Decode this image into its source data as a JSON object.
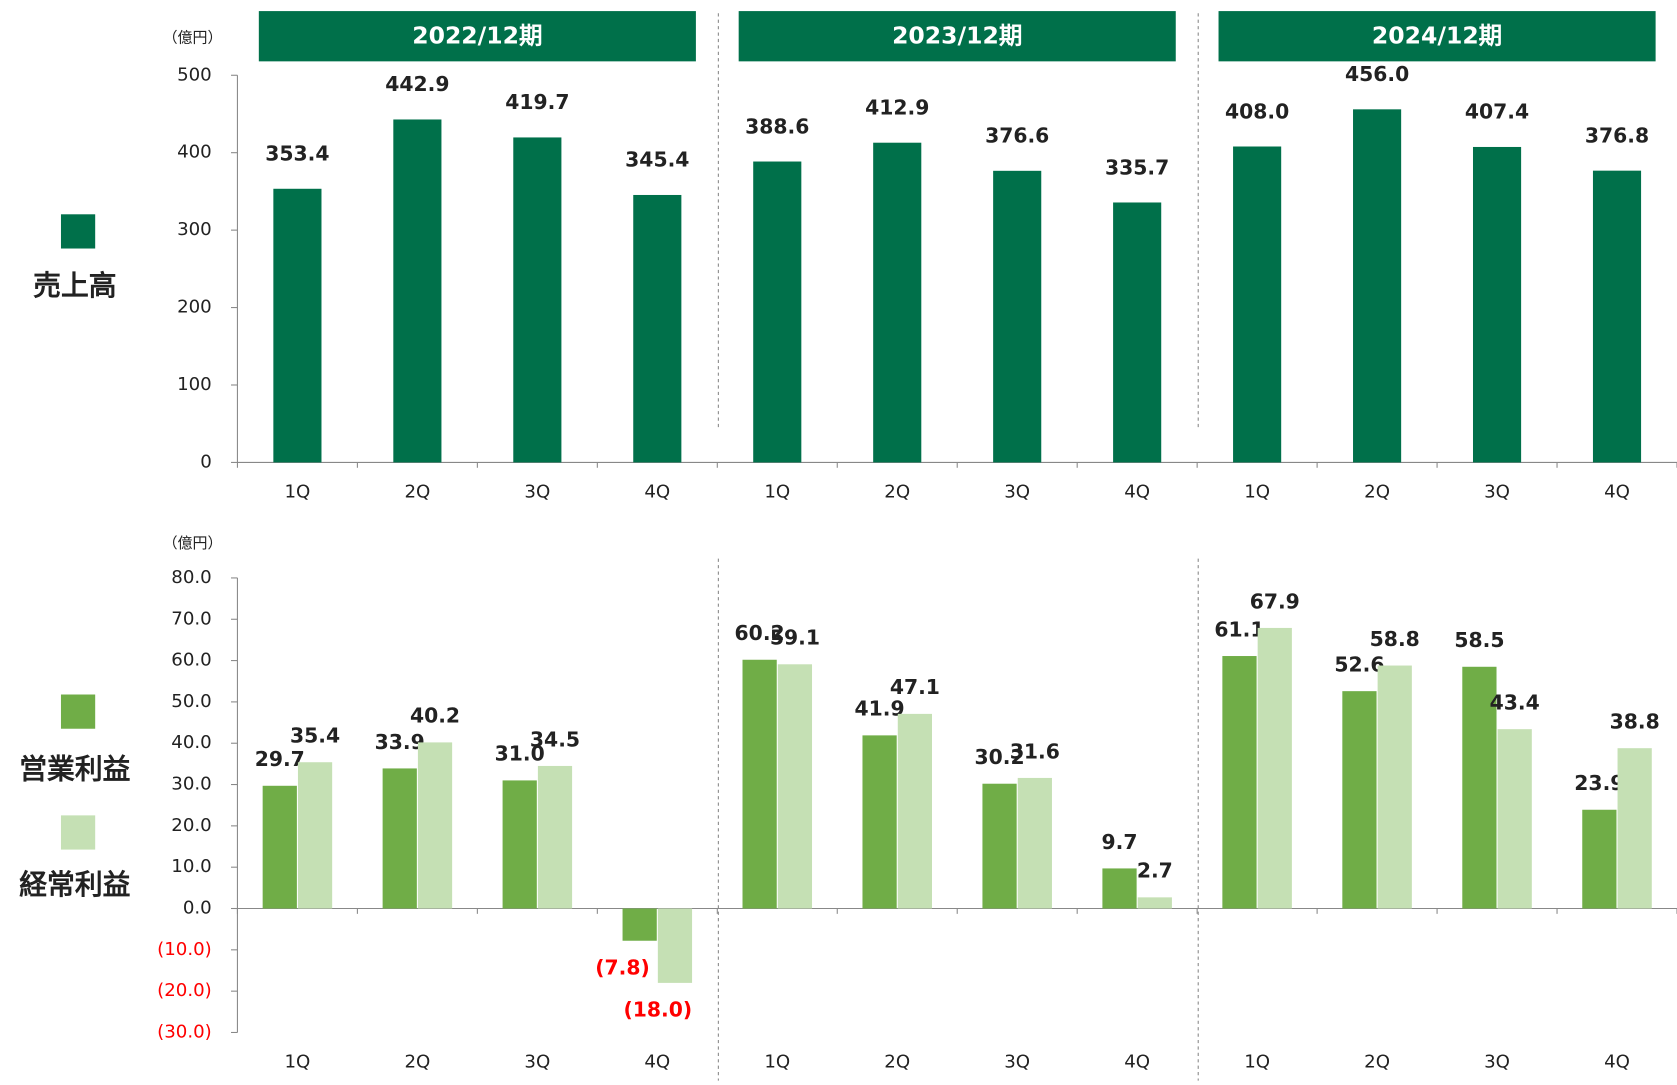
{
  "chart_data": [
    {
      "type": "bar",
      "y_label": "（億円）",
      "groups": [
        "2022/12期",
        "2023/12期",
        "2024/12期"
      ],
      "group_color": "#00704a",
      "categories": [
        "1Q",
        "2Q",
        "3Q",
        "4Q",
        "1Q",
        "2Q",
        "3Q",
        "4Q",
        "1Q",
        "2Q",
        "3Q",
        "4Q"
      ],
      "series": [
        {
          "name": "売上高",
          "color": "#00704a",
          "values": [
            353.4,
            442.9,
            419.7,
            345.4,
            388.6,
            412.9,
            376.6,
            335.7,
            408,
            456,
            407.4,
            376.8
          ],
          "value_labels": [
            "353.4",
            "442.9",
            "419.7",
            "345.4",
            "388.6",
            "412.9",
            "376.6",
            "335.7",
            "408.0",
            "456.0",
            "407.4",
            "376.8"
          ]
        }
      ],
      "ylim": [
        0,
        500
      ],
      "yticks": [
        0,
        100,
        200,
        300,
        400,
        500
      ]
    },
    {
      "type": "bar",
      "y_label": "（億円）",
      "negative_color": "#ff0000",
      "categories": [
        "1Q",
        "2Q",
        "3Q",
        "4Q",
        "1Q",
        "2Q",
        "3Q",
        "4Q",
        "1Q",
        "2Q",
        "3Q",
        "4Q"
      ],
      "series": [
        {
          "name": "営業利益",
          "color": "#70ad47",
          "values": [
            29.7,
            33.9,
            31,
            -7.8,
            60.2,
            41.9,
            30.2,
            9.7,
            61.1,
            52.6,
            58.5,
            23.9
          ],
          "value_labels": [
            "29.7",
            "33.9",
            "31.0",
            "(7.8)",
            "60.2",
            "41.9",
            "30.2",
            "9.7",
            "61.1",
            "52.6",
            "58.5",
            "23.9"
          ]
        },
        {
          "name": "経常利益",
          "color": "#c5e0b4",
          "values": [
            35.4,
            40.2,
            34.5,
            -18,
            59.1,
            47.1,
            31.6,
            2.7,
            67.9,
            58.8,
            43.4,
            38.8
          ],
          "value_labels": [
            "35.4",
            "40.2",
            "34.5",
            "(18.0)",
            "59.1",
            "47.1",
            "31.6",
            "2.7",
            "67.9",
            "58.8",
            "43.4",
            "38.8"
          ]
        }
      ],
      "ylim": [
        -30,
        80
      ],
      "yticks": [
        {
          "value": -30,
          "label": "(30.0)"
        },
        {
          "value": -20,
          "label": "(20.0)"
        },
        {
          "value": -10,
          "label": "(10.0)"
        },
        {
          "value": 0,
          "label": "0.0"
        },
        {
          "value": 10,
          "label": "10.0"
        },
        {
          "value": 20,
          "label": "20.0"
        },
        {
          "value": 30,
          "label": "30.0"
        },
        {
          "value": 40,
          "label": "40.0"
        },
        {
          "value": 50,
          "label": "50.0"
        },
        {
          "value": 60,
          "label": "60.0"
        },
        {
          "value": 70,
          "label": "70.0"
        },
        {
          "value": 80,
          "label": "80.0"
        }
      ]
    }
  ]
}
